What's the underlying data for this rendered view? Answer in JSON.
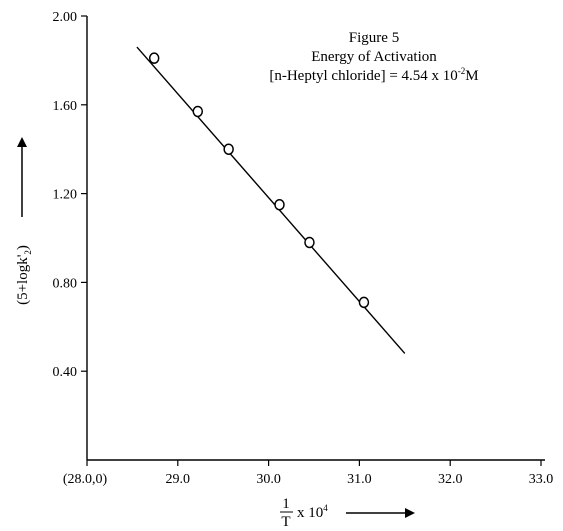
{
  "chart_data": {
    "type": "scatter",
    "title": "Figure 5",
    "subtitle": "Energy of Activation",
    "annotation": {
      "prefix": "[n-Heptyl chloride] = 4.54 x 10",
      "superscript": "-2",
      "suffix": "M"
    },
    "xlabel": {
      "fraction_numerator": "1",
      "fraction_denominator": "T",
      "text": "x 10",
      "superscript": "4"
    },
    "ylabel": {
      "text": "(5+logk'",
      "subscript": "2",
      "close": ")"
    },
    "x_ticks": [
      {
        "value": 28.0,
        "label": "(28.0,0)"
      },
      {
        "value": 29.0,
        "label": "29.0"
      },
      {
        "value": 30.0,
        "label": "30.0"
      },
      {
        "value": 31.0,
        "label": "31.0"
      },
      {
        "value": 32.0,
        "label": "32.0"
      },
      {
        "value": 33.0,
        "label": "33.0"
      }
    ],
    "y_ticks": [
      {
        "value": 0.4,
        "label": "0.40"
      },
      {
        "value": 0.8,
        "label": "0.80"
      },
      {
        "value": 1.2,
        "label": "1.20"
      },
      {
        "value": 1.6,
        "label": "1.60"
      },
      {
        "value": 2.0,
        "label": "2.00"
      }
    ],
    "xlim": [
      28.0,
      33.0
    ],
    "ylim": [
      0.0,
      2.0
    ],
    "grid": false,
    "legend": "none",
    "series": [
      {
        "values": [
          {
            "x": 28.74,
            "y": 1.81
          },
          {
            "x": 29.22,
            "y": 1.57
          },
          {
            "x": 29.56,
            "y": 1.4
          },
          {
            "x": 30.12,
            "y": 1.15
          },
          {
            "x": 30.45,
            "y": 0.98
          },
          {
            "x": 31.05,
            "y": 0.71
          }
        ]
      }
    ],
    "fit_line": {
      "start": {
        "x": 28.55,
        "y": 1.86
      },
      "end": {
        "x": 31.5,
        "y": 0.48
      }
    },
    "colors": {
      "ink": "#000000",
      "background": "#ffffff"
    }
  }
}
